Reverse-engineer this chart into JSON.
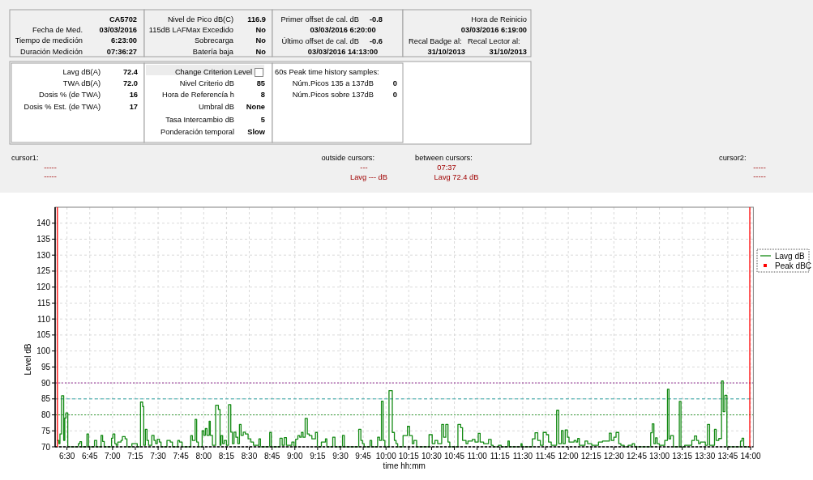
{
  "chart_data": {
    "type": "step",
    "xlabel": "time hh:mm",
    "ylabel": "Level dB",
    "annotations": [
      "CA5702",
      "Fecha de Med.",
      "03/03/2016",
      "Tiempo de medición",
      "6:23:00",
      "Duración Medición",
      "07:36:27",
      "Nivel de Pico dB(C)",
      "116.9",
      "115dB LAFMax Excedido",
      "No",
      "Sobrecarga",
      "No",
      "Batería baja",
      "No",
      "Primer offset de cal. dB",
      "-0.8",
      "03/03/2016 6:20:00",
      "Último offset de cal. dB",
      "-0.6",
      "03/03/2016 14:13:00",
      "Hora de Reinicio",
      "03/03/2016 6:19:00",
      "Recal Badge al:",
      "Recal Lector al:",
      "31/10/2013",
      "31/10/2013",
      "Lavg dB(A)",
      "72.4",
      "TWA dB(A)",
      "72.0",
      "Dosis % (de TWA)",
      "16",
      "Dosis % Est. (de TWA)",
      "17",
      "Change Criterion Level",
      "Nivel Criterio dB",
      "85",
      "Hora de Referencía h",
      "8",
      "Umbral dB",
      "None",
      "Tasa Intercambio dB",
      "5",
      "Ponderación temporal",
      "Slow",
      "60s Peak time history samples:",
      "Núm.Picos 135 a 137dB",
      "0",
      "Núm.Picos sobre 137dB",
      "0",
      "cursor1:",
      "-----",
      "-----",
      "outside cursors:",
      "---",
      "Lavg --- dB",
      "between cursors:",
      "07:37",
      "Lavg 72.4 dB",
      "cursor2:",
      "-----",
      "-----"
    ],
    "xlim": [
      6.37,
      14.03
    ],
    "ylim": [
      70,
      145
    ],
    "xticks": [
      {
        "value": 6.5,
        "label": "6:30"
      },
      {
        "value": 6.75,
        "label": "6:45"
      },
      {
        "value": 7,
        "label": "7:00"
      },
      {
        "value": 7.25,
        "label": "7:15"
      },
      {
        "value": 7.5,
        "label": "7:30"
      },
      {
        "value": 7.75,
        "label": "7:45"
      },
      {
        "value": 8,
        "label": "8:00"
      },
      {
        "value": 8.25,
        "label": "8:15"
      },
      {
        "value": 8.5,
        "label": "8:30"
      },
      {
        "value": 8.75,
        "label": "8:45"
      },
      {
        "value": 9,
        "label": "9:00"
      },
      {
        "value": 9.25,
        "label": "9:15"
      },
      {
        "value": 9.5,
        "label": "9:30"
      },
      {
        "value": 9.75,
        "label": "9:45"
      },
      {
        "value": 10,
        "label": "10:00"
      },
      {
        "value": 10.25,
        "label": "10:15"
      },
      {
        "value": 10.5,
        "label": "10:30"
      },
      {
        "value": 10.75,
        "label": "10:45"
      },
      {
        "value": 11,
        "label": "11:00"
      },
      {
        "value": 11.25,
        "label": "11:15"
      },
      {
        "value": 11.5,
        "label": "11:30"
      },
      {
        "value": 11.75,
        "label": "11:45"
      },
      {
        "value": 12,
        "label": "12:00"
      },
      {
        "value": 12.25,
        "label": "12:15"
      },
      {
        "value": 12.5,
        "label": "12:30"
      },
      {
        "value": 12.75,
        "label": "12:45"
      },
      {
        "value": 13,
        "label": "13:00"
      },
      {
        "value": 13.25,
        "label": "13:15"
      },
      {
        "value": 13.5,
        "label": "13:30"
      },
      {
        "value": 13.75,
        "label": "13:45"
      },
      {
        "value": 14,
        "label": "14:00"
      }
    ],
    "yticks": [
      70,
      75,
      80,
      85,
      90,
      95,
      100,
      105,
      110,
      115,
      120,
      125,
      130,
      135,
      140
    ],
    "grid": true,
    "legend": "right",
    "ref_lines": [
      {
        "axis": "y",
        "value": 90,
        "color": "#993399",
        "line_style": "dotted"
      },
      {
        "axis": "y",
        "value": 85,
        "color": "#33a6a6",
        "line_style": "dashed"
      },
      {
        "axis": "y",
        "value": 80,
        "color": "#339933",
        "line_style": "dotted"
      },
      {
        "axis": "x",
        "value": 6.395,
        "color": "#ff0000",
        "line_style": "solid"
      },
      {
        "axis": "x",
        "value": 13.991,
        "color": "#ff0000",
        "line_style": "solid"
      }
    ],
    "series": [
      {
        "name": "Lavg dB",
        "color": "#138a13",
        "type": "step",
        "line_style": "solid",
        "x": [
          6.39,
          6.411,
          6.423,
          6.441,
          6.464,
          6.476,
          6.488,
          6.509,
          6.625,
          6.642,
          6.66,
          6.719,
          6.737,
          6.802,
          6.826,
          6.874,
          6.891,
          6.909,
          6.989,
          7.004,
          7.025,
          7.04,
          7.058,
          7.093,
          7.108,
          7.138,
          7.158,
          7.212,
          7.271,
          7.307,
          7.33,
          7.342,
          7.36,
          7.378,
          7.396,
          7.431,
          7.455,
          7.473,
          7.491,
          7.514,
          7.532,
          7.597,
          7.633,
          7.657,
          7.716,
          7.734,
          7.763,
          7.858,
          7.876,
          7.906,
          7.923,
          7.941,
          7.983,
          8.001,
          8.018,
          8.036,
          8.06,
          8.072,
          8.096,
          8.131,
          8.161,
          8.179,
          8.19,
          8.208,
          8.226,
          8.25,
          8.273,
          8.297,
          8.315,
          8.333,
          8.353,
          8.374,
          8.392,
          8.41,
          8.434,
          8.457,
          8.487,
          8.517,
          8.546,
          8.606,
          8.623,
          8.724,
          8.742,
          8.837,
          8.861,
          8.884,
          8.908,
          8.967,
          8.991,
          9.009,
          9.033,
          9.054,
          9.072,
          9.09,
          9.113,
          9.137,
          9.158,
          9.187,
          9.226,
          9.247,
          9.291,
          9.336,
          9.351,
          9.416,
          9.44,
          9.523,
          9.543,
          9.701,
          9.724,
          9.742,
          9.76,
          9.825,
          9.843,
          9.908,
          9.929,
          9.95,
          9.968,
          9.988,
          10.033,
          10.069,
          10.092,
          10.11,
          10.128,
          10.187,
          10.235,
          10.258,
          10.288,
          10.306,
          10.336,
          10.472,
          10.507,
          10.537,
          10.567,
          10.611,
          10.632,
          10.656,
          10.68,
          10.7,
          10.789,
          10.819,
          10.84,
          10.878,
          10.899,
          10.947,
          10.976,
          11.012,
          11.033,
          11.071,
          11.125,
          11.154,
          11.175,
          11.234,
          11.264,
          11.338,
          11.353,
          11.481,
          11.493,
          11.605,
          11.635,
          11.665,
          11.694,
          11.724,
          11.759,
          11.783,
          11.813,
          11.872,
          11.895,
          11.925,
          11.943,
          11.966,
          11.99,
          12.008,
          12.064,
          12.085,
          12.103,
          12.121,
          12.183,
          12.212,
          12.257,
          12.331,
          12.376,
          12.45,
          12.471,
          12.5,
          12.524,
          12.554,
          12.577,
          12.613,
          12.657,
          12.702,
          12.726,
          12.904,
          12.921,
          12.939,
          12.957,
          12.975,
          12.999,
          13.058,
          13.088,
          13.105,
          13.123,
          13.153,
          13.218,
          13.236,
          13.277,
          13.355,
          13.384,
          13.408,
          13.429,
          13.449,
          13.503,
          13.527,
          13.55,
          13.604,
          13.622,
          13.651,
          13.681,
          13.699,
          13.717,
          13.74,
          13.889,
          13.906,
          13.924,
          13.991
        ],
        "values": [
          72,
          71,
          74,
          86,
          72,
          79,
          80.6,
          70,
          71,
          71.6,
          70,
          74,
          70,
          72,
          70,
          73.6,
          71.7,
          70,
          72.7,
          74,
          71,
          70.5,
          71.5,
          72,
          73.2,
          72.5,
          70,
          71,
          70,
          84,
          82.6,
          70.5,
          75.5,
          72,
          70.5,
          73.6,
          72,
          71,
          72.4,
          71.5,
          70,
          72,
          71.5,
          70,
          72,
          71.5,
          70,
          73.5,
          72,
          78.6,
          71.5,
          70,
          75,
          73.6,
          75.7,
          73.6,
          78,
          73.6,
          70.5,
          83,
          81.7,
          70.5,
          73.5,
          71,
          72,
          70.5,
          83.2,
          74.6,
          71,
          74.6,
          73,
          71,
          77,
          73.6,
          74.6,
          74,
          72.5,
          71.5,
          70.5,
          72.5,
          70,
          74.5,
          70,
          72.7,
          70.5,
          72.9,
          70.5,
          71.5,
          70,
          72.4,
          73.5,
          73,
          74.5,
          73,
          78.9,
          74,
          73.5,
          72.5,
          74.5,
          70,
          71.5,
          72.5,
          70,
          73,
          70,
          73.6,
          70,
          75.5,
          72,
          71,
          70,
          72,
          70,
          73,
          72,
          84.3,
          72,
          70,
          87.6,
          74.5,
          72,
          71,
          70,
          73.5,
          76.4,
          73.5,
          71,
          72,
          70,
          73.8,
          71,
          72,
          71,
          77,
          73,
          77,
          71.5,
          70,
          77,
          76,
          72,
          71,
          71.8,
          72.3,
          71.5,
          74.2,
          71.5,
          71,
          72.3,
          70.5,
          70,
          70.5,
          70,
          71.8,
          70,
          71,
          70,
          72.5,
          74.4,
          72,
          70.5,
          74.5,
          73.8,
          71.5,
          70.5,
          81.4,
          71,
          75.1,
          71,
          75.3,
          73,
          71.5,
          72,
          71.5,
          72.6,
          70.5,
          71.8,
          71,
          70.5,
          71.5,
          71.8,
          74.3,
          72,
          73,
          74.5,
          71,
          70.5,
          70,
          70.5,
          71,
          70,
          74.4,
          77.2,
          71,
          72.8,
          71,
          70.5,
          72,
          88,
          72.5,
          73.5,
          70,
          84.2,
          70,
          70.5,
          72,
          73.4,
          72,
          71,
          71.5,
          70.5,
          77,
          70.5,
          75.5,
          72,
          72.6,
          90.6,
          81,
          86.1,
          70,
          71.8,
          72.7,
          70,
          70
        ]
      },
      {
        "name": "Peak dBC",
        "color": "#ff0000",
        "type": "scatter",
        "marker": "square"
      }
    ]
  }
}
